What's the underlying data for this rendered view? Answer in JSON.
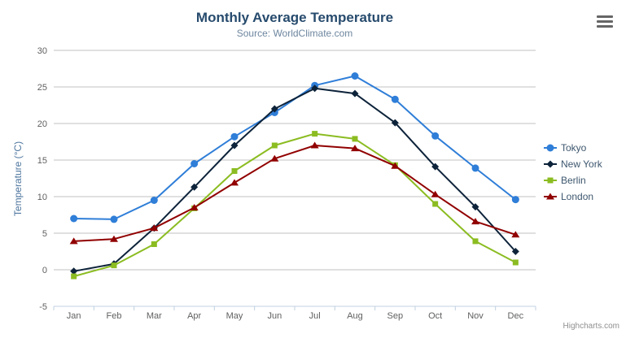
{
  "chart_data": {
    "type": "line",
    "title": "Monthly Average Temperature",
    "subtitle": "Source: WorldClimate.com",
    "categories": [
      "Jan",
      "Feb",
      "Mar",
      "Apr",
      "May",
      "Jun",
      "Jul",
      "Aug",
      "Sep",
      "Oct",
      "Nov",
      "Dec"
    ],
    "series": [
      {
        "name": "Tokyo",
        "color": "#2f7ed8",
        "marker": "circle",
        "values": [
          7.0,
          6.9,
          9.5,
          14.5,
          18.2,
          21.5,
          25.2,
          26.5,
          23.3,
          18.3,
          13.9,
          9.6
        ]
      },
      {
        "name": "New York",
        "color": "#0d233a",
        "marker": "diamond",
        "values": [
          -0.2,
          0.8,
          5.7,
          11.3,
          17.0,
          22.0,
          24.8,
          24.1,
          20.1,
          14.1,
          8.6,
          2.5
        ]
      },
      {
        "name": "Berlin",
        "color": "#8bbc21",
        "marker": "square",
        "values": [
          -0.9,
          0.6,
          3.5,
          8.4,
          13.5,
          17.0,
          18.6,
          17.9,
          14.3,
          9.0,
          3.9,
          1.0
        ]
      },
      {
        "name": "London",
        "color": "#910000",
        "marker": "triangle-up",
        "values": [
          3.9,
          4.2,
          5.7,
          8.5,
          11.9,
          15.2,
          17.0,
          16.6,
          14.2,
          10.3,
          6.6,
          4.8
        ]
      }
    ],
    "xlabel": "",
    "ylabel": "Temperature (°C)",
    "ylim": [
      -5,
      30
    ],
    "ytick_step": 5,
    "yticks": [
      -5,
      0,
      5,
      10,
      15,
      20,
      25,
      30
    ],
    "grid": true,
    "legend_position": "right"
  },
  "credits": {
    "label": "Highcharts.com"
  },
  "menu": {
    "icon": "hamburger-icon"
  },
  "colors": {
    "background": "#ffffff",
    "grid_line": "#c0c0c0",
    "axis_line": "#c0d0e0",
    "tick_label": "#606060",
    "title": "#274b6d",
    "subtitle": "#6d869f",
    "axis_title": "#4d759e",
    "legend_text": "#3e576f",
    "credits": "#8f8f8f",
    "menu_icon": "#666666"
  }
}
